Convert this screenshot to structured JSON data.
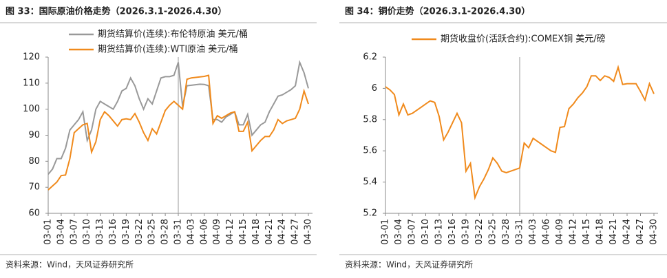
{
  "chart_data": [
    {
      "type": "line",
      "title": "图 33：国际原油价格走势（2026.3.1-2026.4.30）",
      "source": "资料来源：Wind，天风证券研究所",
      "x": [
        "03-01",
        "03-02",
        "03-03",
        "03-04",
        "03-05",
        "03-06",
        "03-07",
        "03-08",
        "03-09",
        "03-10",
        "03-11",
        "03-12",
        "03-13",
        "03-14",
        "03-15",
        "03-16",
        "03-17",
        "03-18",
        "03-19",
        "03-20",
        "03-21",
        "03-22",
        "03-23",
        "03-24",
        "03-25",
        "03-26",
        "03-27",
        "03-28",
        "03-29",
        "03-30",
        "03-31",
        "04-01",
        "04-02",
        "04-03",
        "04-04",
        "04-05",
        "04-06",
        "04-07",
        "04-08",
        "04-09",
        "04-10",
        "04-11",
        "04-12",
        "04-13",
        "04-14",
        "04-15",
        "04-16",
        "04-17",
        "04-18",
        "04-19",
        "04-20",
        "04-21",
        "04-22",
        "04-23",
        "04-24",
        "04-25",
        "04-26",
        "04-27",
        "04-28",
        "04-29",
        "04-30"
      ],
      "xticks": [
        "03-01",
        "03-04",
        "03-07",
        "03-10",
        "03-13",
        "03-16",
        "03-19",
        "03-22",
        "03-25",
        "03-28",
        "03-31",
        "04-03",
        "04-06",
        "04-09",
        "04-12",
        "04-15",
        "04-18",
        "04-21",
        "04-24",
        "04-27",
        "04-30"
      ],
      "vline": "03-31",
      "series": [
        {
          "name": "期货结算价(连续):布伦特原油 美元/桶",
          "color": "#999999",
          "values": [
            75,
            77,
            81,
            81,
            85,
            92,
            94,
            96,
            99,
            88,
            92,
            100,
            103,
            102,
            101,
            100,
            103,
            107,
            108,
            112,
            109,
            104,
            100,
            104,
            102,
            107,
            112,
            112.5,
            112.5,
            113,
            118,
            101,
            109,
            109.2,
            109.4,
            109.6,
            109.5,
            109,
            96,
            96,
            95,
            97,
            98,
            99,
            94,
            94,
            98,
            90,
            92,
            94,
            95,
            99,
            102,
            105,
            105.5,
            106.5,
            107.5,
            109,
            118,
            114,
            108
          ]
        },
        {
          "name": "期货结算价(连续):WTI原油 美元/桶",
          "color": "#f08a1c",
          "values": [
            69,
            70.5,
            72,
            74.5,
            74.7,
            81,
            91,
            92.5,
            94,
            94.5,
            83.5,
            87.5,
            96,
            99,
            97.5,
            95.5,
            93.5,
            96,
            96.3,
            96,
            98.3,
            95,
            91,
            88,
            92.5,
            90.5,
            95,
            99.5,
            101.5,
            103,
            101.5,
            100,
            111.5,
            112,
            112.2,
            112.4,
            112.6,
            113,
            94.5,
            97.5,
            96.5,
            97.5,
            98.5,
            99,
            91.5,
            91.5,
            95,
            84,
            86,
            88,
            89.5,
            89.5,
            92,
            96,
            94.5,
            95.5,
            96,
            96.5,
            100,
            107,
            102
          ]
        }
      ],
      "ylim": [
        60,
        120
      ],
      "yticks": [
        60,
        70,
        80,
        90,
        100,
        110,
        120
      ]
    },
    {
      "type": "line",
      "title": "图 34：铜价走势（2026.3.1-2026.4.30）",
      "source": "资料来源：Wind，天风证券研究所",
      "x": [
        "03-01",
        "03-02",
        "03-03",
        "03-04",
        "03-05",
        "03-06",
        "03-07",
        "03-08",
        "03-09",
        "03-10",
        "03-11",
        "03-12",
        "03-13",
        "03-14",
        "03-15",
        "03-16",
        "03-17",
        "03-18",
        "03-19",
        "03-20",
        "03-21",
        "03-22",
        "03-23",
        "03-24",
        "03-25",
        "03-26",
        "03-27",
        "03-28",
        "03-29",
        "03-30",
        "03-31",
        "04-01",
        "04-02",
        "04-03",
        "04-04",
        "04-05",
        "04-06",
        "04-07",
        "04-08",
        "04-09",
        "04-10",
        "04-11",
        "04-12",
        "04-13",
        "04-14",
        "04-15",
        "04-16",
        "04-17",
        "04-18",
        "04-19",
        "04-20",
        "04-21",
        "04-22",
        "04-23",
        "04-24",
        "04-25",
        "04-26",
        "04-27",
        "04-28",
        "04-29",
        "04-30"
      ],
      "xticks": [
        "03-01",
        "03-04",
        "03-07",
        "03-10",
        "03-13",
        "03-16",
        "03-19",
        "03-22",
        "03-25",
        "03-28",
        "03-31",
        "04-03",
        "04-06",
        "04-09",
        "04-12",
        "04-15",
        "04-18",
        "04-21",
        "04-24",
        "04-27",
        "04-30"
      ],
      "vline": "03-31",
      "series": [
        {
          "name": "期货收盘价(活跃合约):COMEX铜 美元/磅",
          "color": "#f08a1c",
          "values": [
            6.01,
            5.99,
            5.96,
            5.83,
            5.9,
            5.83,
            5.84,
            5.86,
            5.88,
            5.9,
            5.92,
            5.91,
            5.82,
            5.67,
            5.72,
            5.78,
            5.84,
            5.78,
            5.47,
            5.52,
            5.3,
            5.37,
            5.42,
            5.48,
            5.555,
            5.52,
            5.47,
            5.46,
            5.47,
            5.48,
            5.49,
            5.65,
            5.62,
            5.68,
            5.66,
            5.64,
            5.62,
            5.6,
            5.59,
            5.75,
            5.755,
            5.87,
            5.9,
            5.94,
            5.97,
            6.01,
            6.08,
            6.08,
            6.05,
            6.08,
            6.07,
            6.045,
            6.135,
            6.025,
            6.03,
            6.03,
            6.03,
            5.98,
            5.925,
            6.03,
            5.965
          ]
        }
      ],
      "ylim": [
        5.2,
        6.2
      ],
      "yticks": [
        5.2,
        5.4,
        5.6,
        5.8,
        6,
        6.2
      ]
    }
  ]
}
